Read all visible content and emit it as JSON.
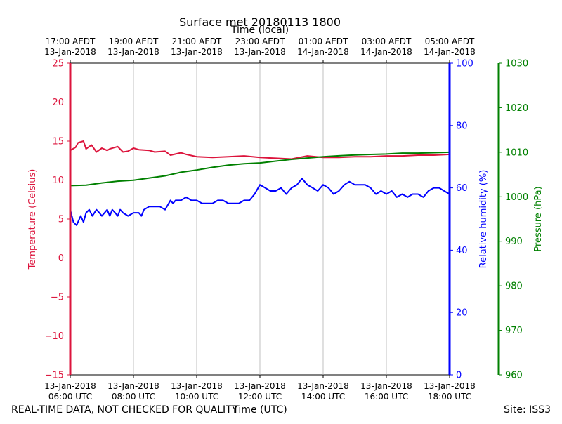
{
  "chart_data": {
    "type": "line",
    "title": "Surface met 20180113 1800",
    "top_axis_label": "Time (local)",
    "xlabel": "Time (UTC)",
    "footer_left": "REAL-TIME DATA, NOT CHECKED FOR QUALITY",
    "footer_right": "Site: ISS3",
    "x_range_hours_utc": [
      6.0,
      18.0
    ],
    "bottom_ticks": [
      {
        "hour": 6,
        "line1": "13-Jan-2018",
        "line2": "06:00 UTC"
      },
      {
        "hour": 8,
        "line1": "13-Jan-2018",
        "line2": "08:00 UTC"
      },
      {
        "hour": 10,
        "line1": "13-Jan-2018",
        "line2": "10:00 UTC"
      },
      {
        "hour": 12,
        "line1": "13-Jan-2018",
        "line2": "12:00 UTC"
      },
      {
        "hour": 14,
        "line1": "13-Jan-2018",
        "line2": "14:00 UTC"
      },
      {
        "hour": 16,
        "line1": "13-Jan-2018",
        "line2": "16:00 UTC"
      },
      {
        "hour": 18,
        "line1": "13-Jan-2018",
        "line2": "18:00 UTC"
      }
    ],
    "top_ticks": [
      {
        "hour": 6,
        "line1": "17:00 AEDT",
        "line2": "13-Jan-2018"
      },
      {
        "hour": 8,
        "line1": "19:00 AEDT",
        "line2": "13-Jan-2018"
      },
      {
        "hour": 10,
        "line1": "21:00 AEDT",
        "line2": "13-Jan-2018"
      },
      {
        "hour": 12,
        "line1": "23:00 AEDT",
        "line2": "13-Jan-2018"
      },
      {
        "hour": 14,
        "line1": "01:00 AEDT",
        "line2": "14-Jan-2018"
      },
      {
        "hour": 16,
        "line1": "03:00 AEDT",
        "line2": "14-Jan-2018"
      },
      {
        "hour": 18,
        "line1": "05:00 AEDT",
        "line2": "14-Jan-2018"
      }
    ],
    "axes": [
      {
        "id": "temperature",
        "label": "Temperature (Celsius)",
        "color": "#dc143c",
        "ylim": [
          -15,
          25
        ],
        "ticks": [
          -15,
          -10,
          -5,
          0,
          5,
          10,
          15,
          20,
          25
        ],
        "tick_labels": [
          "−15",
          "−10",
          "−5",
          "0",
          "5",
          "10",
          "15",
          "20",
          "25"
        ]
      },
      {
        "id": "humidity",
        "label": "Relative humidity (%)",
        "color": "#0000ff",
        "ylim": [
          0,
          100
        ],
        "ticks": [
          0,
          20,
          40,
          60,
          80,
          100
        ],
        "tick_labels": [
          "0",
          "20",
          "40",
          "60",
          "80",
          "100"
        ]
      },
      {
        "id": "pressure",
        "label": "Pressure (hPa)",
        "color": "#008000",
        "ylim": [
          960,
          1030
        ],
        "ticks": [
          960,
          970,
          980,
          990,
          1000,
          1010,
          1020,
          1030
        ],
        "tick_labels": [
          "960",
          "970",
          "980",
          "990",
          "1000",
          "1010",
          "1020",
          "1030"
        ]
      }
    ],
    "series": [
      {
        "name": "Temperature",
        "axis": "temperature",
        "color": "#dc143c",
        "x": [
          6.0,
          6.17,
          6.25,
          6.42,
          6.5,
          6.67,
          6.83,
          7.0,
          7.17,
          7.25,
          7.5,
          7.67,
          7.83,
          8.0,
          8.17,
          8.5,
          8.67,
          9.0,
          9.17,
          9.5,
          9.67,
          10.0,
          10.5,
          11.0,
          11.5,
          12.0,
          12.5,
          13.0,
          13.5,
          14.0,
          14.5,
          15.0,
          15.5,
          16.0,
          16.5,
          17.0,
          17.5,
          18.0
        ],
        "values": [
          13.8,
          14.2,
          14.8,
          15.0,
          14.0,
          14.5,
          13.6,
          14.1,
          13.8,
          14.0,
          14.3,
          13.6,
          13.7,
          14.1,
          13.9,
          13.8,
          13.6,
          13.7,
          13.2,
          13.5,
          13.3,
          13.0,
          12.9,
          13.0,
          13.1,
          12.9,
          12.8,
          12.7,
          13.1,
          12.9,
          12.9,
          13.0,
          13.0,
          13.1,
          13.1,
          13.2,
          13.2,
          13.3
        ]
      },
      {
        "name": "Relative humidity",
        "axis": "humidity",
        "color": "#0000ff",
        "x": [
          6.0,
          6.1,
          6.2,
          6.33,
          6.42,
          6.5,
          6.6,
          6.7,
          6.83,
          6.92,
          7.0,
          7.17,
          7.25,
          7.33,
          7.42,
          7.5,
          7.58,
          7.67,
          7.83,
          8.0,
          8.17,
          8.25,
          8.33,
          8.5,
          8.67,
          8.83,
          9.0,
          9.17,
          9.25,
          9.33,
          9.5,
          9.67,
          9.83,
          10.0,
          10.17,
          10.33,
          10.5,
          10.67,
          10.83,
          11.0,
          11.17,
          11.33,
          11.5,
          11.67,
          11.83,
          12.0,
          12.17,
          12.33,
          12.5,
          12.67,
          12.83,
          13.0,
          13.17,
          13.33,
          13.5,
          13.67,
          13.83,
          14.0,
          14.17,
          14.33,
          14.5,
          14.67,
          14.83,
          15.0,
          15.17,
          15.33,
          15.5,
          15.67,
          15.83,
          16.0,
          16.17,
          16.33,
          16.5,
          16.67,
          16.83,
          17.0,
          17.17,
          17.33,
          17.5,
          17.67,
          17.83,
          18.0
        ],
        "values": [
          53,
          49,
          48,
          51,
          49,
          52,
          53,
          51,
          53,
          52,
          51,
          53,
          51,
          53,
          52,
          51,
          53,
          52,
          51,
          52,
          52,
          51,
          53,
          54,
          54,
          54,
          53,
          56,
          55,
          56,
          56,
          57,
          56,
          56,
          55,
          55,
          55,
          56,
          56,
          55,
          55,
          55,
          56,
          56,
          58,
          61,
          60,
          59,
          59,
          60,
          58,
          60,
          61,
          63,
          61,
          60,
          59,
          61,
          60,
          58,
          59,
          61,
          62,
          61,
          61,
          61,
          60,
          58,
          59,
          58,
          59,
          57,
          58,
          57,
          58,
          58,
          57,
          59,
          60,
          60,
          59,
          58
        ]
      },
      {
        "name": "Pressure",
        "axis": "pressure",
        "color": "#008000",
        "x": [
          6.0,
          6.5,
          7.0,
          7.5,
          8.0,
          8.5,
          9.0,
          9.5,
          10.0,
          10.5,
          11.0,
          11.5,
          12.0,
          12.5,
          13.0,
          13.5,
          14.0,
          14.5,
          15.0,
          15.5,
          16.0,
          16.5,
          17.0,
          17.5,
          18.0
        ],
        "values": [
          1002.5,
          1002.6,
          1003.1,
          1003.5,
          1003.7,
          1004.2,
          1004.7,
          1005.5,
          1006.0,
          1006.6,
          1007.1,
          1007.4,
          1007.6,
          1008.0,
          1008.4,
          1008.7,
          1009.0,
          1009.2,
          1009.4,
          1009.5,
          1009.6,
          1009.8,
          1009.8,
          1009.9,
          1010.0
        ]
      }
    ]
  }
}
